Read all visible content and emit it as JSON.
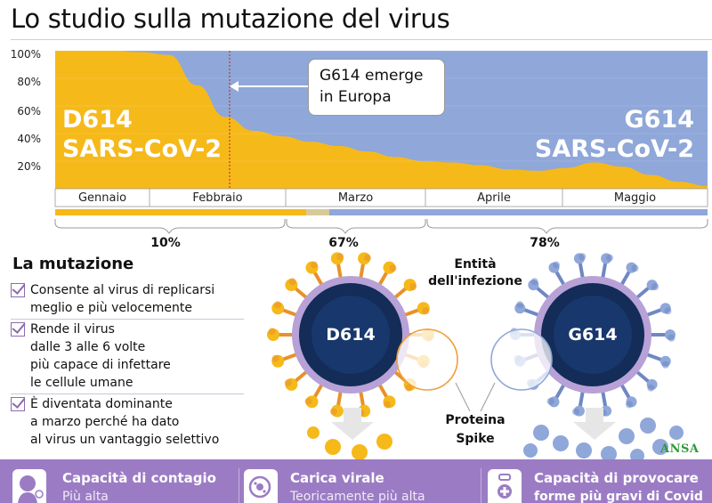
{
  "title": "Lo studio sulla mutazione del virus",
  "chart_data": {
    "type": "area",
    "stacked": true,
    "percent": true,
    "ylim": [
      0,
      100
    ],
    "yticks": [
      "100%",
      "80%",
      "60%",
      "40%",
      "20%"
    ],
    "x_labels": [
      "Gennaio",
      "Febbraio",
      "Marzo",
      "Aprile",
      "Maggio"
    ],
    "series": [
      {
        "name": "D614 SARS-CoV-2",
        "color": "#f6b91a",
        "values": [
          100,
          100,
          100,
          99,
          97,
          75,
          52,
          42,
          38,
          34,
          31,
          27,
          23,
          20,
          19,
          17,
          14,
          13,
          15,
          19,
          16,
          10,
          5,
          2
        ]
      },
      {
        "name": "G614 SARS-CoV-2",
        "color": "#8fa7d9",
        "values": [
          0,
          0,
          0,
          1,
          3,
          25,
          48,
          58,
          62,
          66,
          69,
          73,
          77,
          80,
          81,
          83,
          86,
          87,
          85,
          81,
          84,
          90,
          95,
          98
        ]
      }
    ],
    "annotation": "G614 emerge\nin Europa",
    "big_labels": {
      "d614": "D614\nSARS-CoV-2",
      "g614": "G614\nSARS-CoV-2"
    },
    "period_shares": [
      "10%",
      "67%",
      "78%"
    ]
  },
  "mutation": {
    "title": "La mutazione",
    "items": [
      "Consente al virus di replicarsi\nmeglio e più velocemente",
      "Rende il virus\ndalle 3 alle 6 volte\npiù capace di infettare\nle cellule umane",
      "È diventata dominante\na marzo perché ha dato\nal virus un vantaggio selettivo"
    ]
  },
  "illustration": {
    "infection_label": "Entità\ndell'infezione",
    "spike_label": "Proteina\nSpike",
    "virus_left": "D614",
    "virus_right": "G614",
    "colors": {
      "d614": "#f6b91a",
      "g614": "#8fa7d9",
      "core": "#132c58",
      "membrane": "#b7a1d6"
    }
  },
  "credit": "ANSA",
  "footer": {
    "items": [
      {
        "title": "Capacità di contagio",
        "subtitle": "Più alta",
        "icon": "person-virus-icon"
      },
      {
        "title": "Carica virale",
        "subtitle": "Teoricamente più alta",
        "icon": "magnifier-virus-icon"
      },
      {
        "title": "Capacità di provocare",
        "subtitle": "forme più gravi di Covid",
        "icon": "medical-case-icon"
      }
    ]
  }
}
